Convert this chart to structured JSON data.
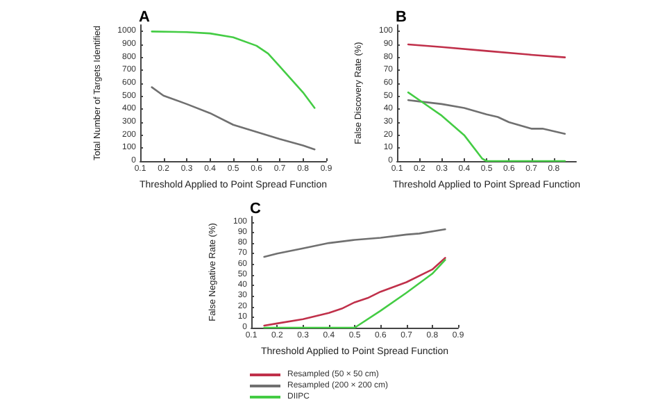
{
  "chart_data": [
    {
      "type": "line",
      "title": "A",
      "xlabel": "Threshold Applied to Point Spread Function",
      "ylabel": "Total Number of Targets Identified",
      "xlim": [
        0.1,
        0.9
      ],
      "xticks": [
        0.1,
        0.2,
        0.3,
        0.4,
        0.5,
        0.6,
        0.7,
        0.8,
        0.9
      ],
      "ylim": [
        0,
        1050
      ],
      "yticks": [
        0,
        100,
        200,
        300,
        400,
        500,
        600,
        700,
        800,
        900,
        1000
      ],
      "grid": false,
      "legend": false,
      "marker": "none",
      "series": [
        {
          "color": "#707070",
          "x": [
            0.15,
            0.2,
            0.3,
            0.4,
            0.5,
            0.6,
            0.7,
            0.8,
            0.85
          ],
          "values": [
            570,
            505,
            440,
            370,
            280,
            225,
            170,
            120,
            90
          ]
        },
        {
          "color": "#44cc44",
          "x": [
            0.15,
            0.3,
            0.4,
            0.5,
            0.6,
            0.65,
            0.7,
            0.8,
            0.85
          ],
          "values": [
            1000,
            995,
            985,
            955,
            890,
            830,
            730,
            530,
            410
          ]
        }
      ]
    },
    {
      "type": "line",
      "title": "B",
      "xlabel": "Threshold Applied to Point Spread Function",
      "ylabel": "False Discovery Rate (%)",
      "xlim": [
        0.1,
        0.9
      ],
      "xticks": [
        0.1,
        0.2,
        0.3,
        0.4,
        0.5,
        0.6,
        0.7,
        0.8
      ],
      "ylim": [
        0,
        105
      ],
      "yticks": [
        0,
        10,
        20,
        30,
        40,
        50,
        60,
        70,
        80,
        90,
        100
      ],
      "grid": false,
      "legend": false,
      "marker": "none",
      "series": [
        {
          "color": "#c0304a",
          "x": [
            0.15,
            0.3,
            0.5,
            0.7,
            0.85
          ],
          "values": [
            90,
            88,
            85,
            82,
            80
          ]
        },
        {
          "color": "#707070",
          "x": [
            0.15,
            0.2,
            0.3,
            0.4,
            0.5,
            0.55,
            0.6,
            0.7,
            0.75,
            0.85
          ],
          "values": [
            47,
            46,
            44,
            41,
            36,
            34,
            30,
            25,
            25,
            21
          ]
        },
        {
          "color": "#44cc44",
          "x": [
            0.15,
            0.2,
            0.3,
            0.4,
            0.48,
            0.5,
            0.85
          ],
          "values": [
            53,
            47,
            35,
            20,
            2,
            0,
            0
          ]
        }
      ]
    },
    {
      "type": "line",
      "title": "C",
      "xlabel": "Threshold Applied to Point Spread Function",
      "ylabel": "False Negative Rate (%)",
      "xlim": [
        0.1,
        0.9
      ],
      "xticks": [
        0.1,
        0.2,
        0.3,
        0.4,
        0.5,
        0.6,
        0.7,
        0.8,
        0.9
      ],
      "ylim": [
        0,
        105
      ],
      "yticks": [
        0,
        10,
        20,
        30,
        40,
        50,
        60,
        70,
        80,
        90,
        100
      ],
      "grid": false,
      "legend": "bottom",
      "marker": "none",
      "series": [
        {
          "name": "Resampled (50 × 50 cm)",
          "color": "#c0304a",
          "x": [
            0.15,
            0.2,
            0.3,
            0.4,
            0.45,
            0.5,
            0.55,
            0.6,
            0.7,
            0.8,
            0.85
          ],
          "values": [
            2,
            4,
            8,
            14,
            18,
            24,
            28,
            34,
            43,
            55,
            66
          ]
        },
        {
          "name": "Resampled (200 × 200 cm)",
          "color": "#707070",
          "x": [
            0.15,
            0.2,
            0.3,
            0.4,
            0.5,
            0.6,
            0.7,
            0.75,
            0.85
          ],
          "values": [
            67,
            70,
            75,
            80,
            83,
            85,
            88,
            89,
            93
          ]
        },
        {
          "name": "DIIPC",
          "color": "#44cc44",
          "x": [
            0.15,
            0.5,
            0.6,
            0.7,
            0.8,
            0.85
          ],
          "values": [
            0,
            0,
            16,
            33,
            51,
            64
          ]
        }
      ]
    }
  ]
}
